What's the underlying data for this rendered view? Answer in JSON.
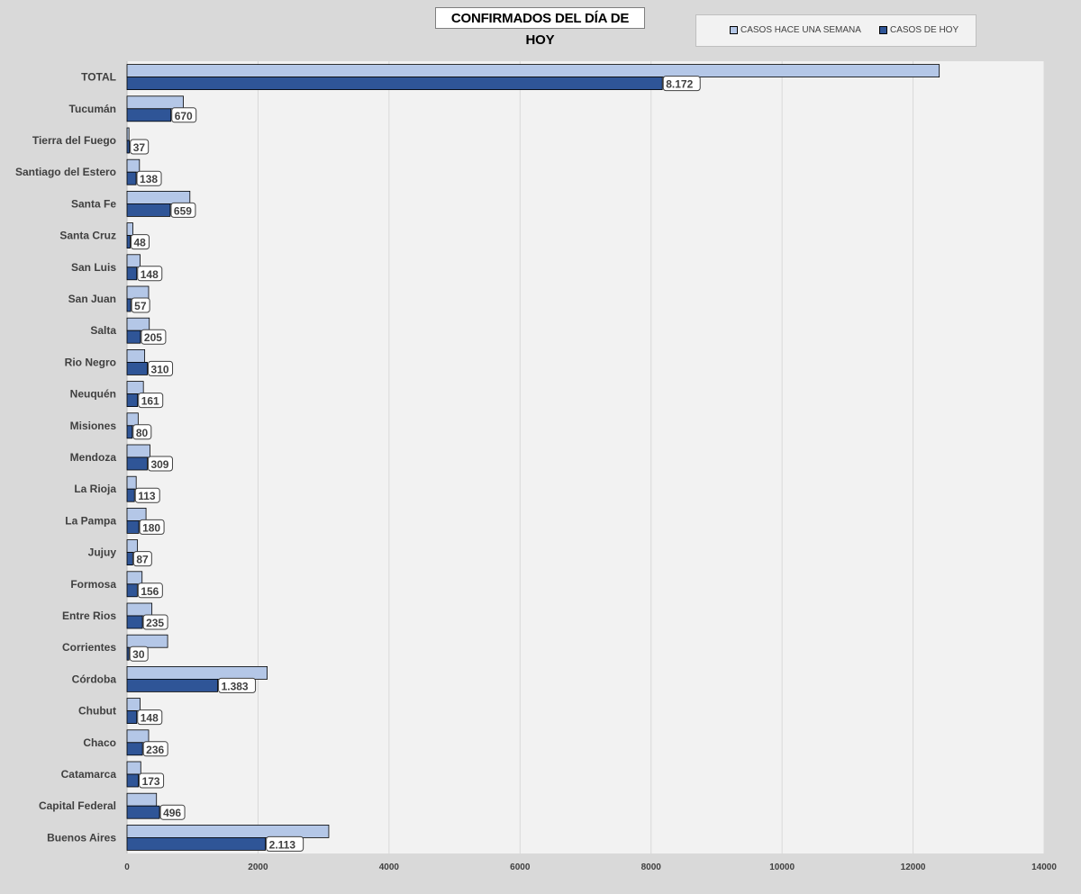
{
  "chart_data": {
    "type": "bar",
    "orientation": "horizontal",
    "title": "CONFIRMADOS DEL DÍA DE HOY",
    "categories": [
      "TOTAL",
      "Tucumán",
      "Tierra del Fuego",
      "Santiago del Estero",
      "Santa Fe",
      "Santa Cruz",
      "San Luis",
      "San Juan",
      "Salta",
      "Rio Negro",
      "Neuquén",
      "Misiones",
      "Mendoza",
      "La Rioja",
      "La Pampa",
      "Jujuy",
      "Formosa",
      "Entre Rios",
      "Corrientes",
      "Córdoba",
      "Chubut",
      "Chaco",
      "Catamarca",
      "Capital Federal",
      "Buenos Aires"
    ],
    "series": [
      {
        "name": "CASOS HACE UNA SEMANA",
        "color": "#b4c7e7",
        "values": [
          12400,
          860,
          30,
          190,
          960,
          90,
          200,
          330,
          340,
          270,
          250,
          170,
          350,
          140,
          290,
          160,
          230,
          380,
          620,
          2140,
          200,
          330,
          210,
          450,
          3080
        ]
      },
      {
        "name": "CASOS DE HOY",
        "color": "#2f5597",
        "values": [
          8172,
          670,
          37,
          138,
          659,
          48,
          148,
          57,
          205,
          310,
          161,
          80,
          309,
          113,
          180,
          87,
          156,
          235,
          30,
          1383,
          148,
          236,
          173,
          496,
          2113
        ],
        "data_labels": [
          "8.172",
          "670",
          "37",
          "138",
          "659",
          "48",
          "148",
          "57",
          "205",
          "310",
          "161",
          "80",
          "309",
          "113",
          "180",
          "87",
          "156",
          "235",
          "30",
          "1.383",
          "148",
          "236",
          "173",
          "496",
          "2.113"
        ]
      }
    ],
    "xlim": [
      0,
      14000
    ],
    "xticks": [
      0,
      2000,
      4000,
      6000,
      8000,
      10000,
      12000,
      14000
    ],
    "grid": true,
    "legend_position": "top-right"
  }
}
